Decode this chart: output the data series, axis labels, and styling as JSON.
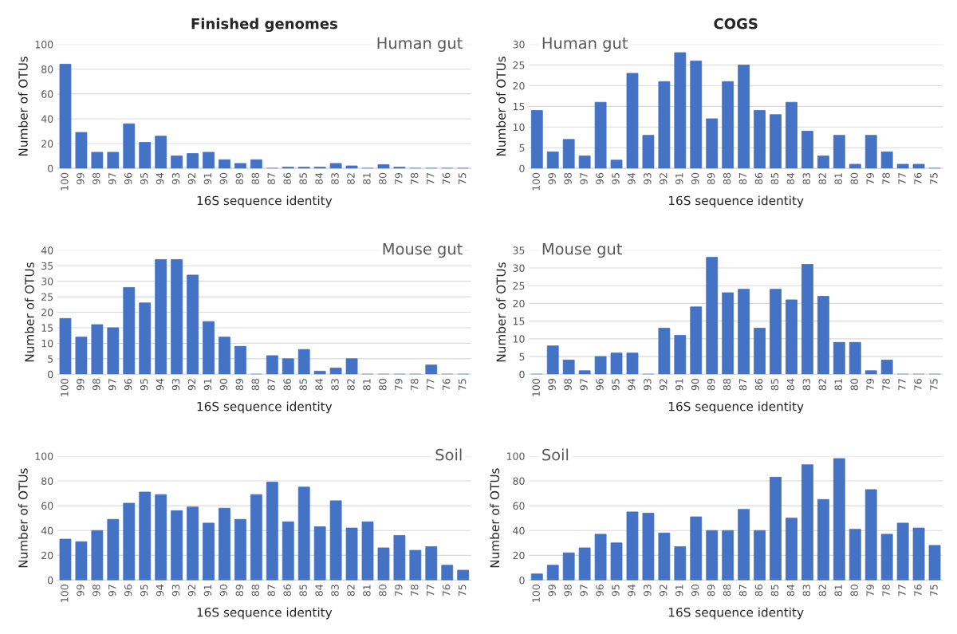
{
  "chart_data": [
    {
      "type": "bar",
      "title": "Finished genomes",
      "subtitle": "Human gut",
      "xlabel": "16S sequence identity",
      "ylabel": "Number of OTUs",
      "categories": [
        "100",
        "99",
        "98",
        "97",
        "96",
        "95",
        "94",
        "93",
        "92",
        "91",
        "90",
        "89",
        "88",
        "87",
        "86",
        "85",
        "84",
        "83",
        "82",
        "81",
        "80",
        "79",
        "78",
        "77",
        "76",
        "75"
      ],
      "color": "#4472c4",
      "values": [
        84,
        29,
        13,
        13,
        36,
        21,
        26,
        10,
        12,
        13,
        7,
        4,
        7,
        0,
        1,
        1,
        1,
        4,
        2,
        0,
        3,
        1,
        0,
        0,
        0,
        0
      ],
      "ylim": [
        0,
        100
      ],
      "yticks": [
        0,
        20,
        40,
        60,
        80,
        100
      ],
      "grid": "y",
      "legend": false
    },
    {
      "type": "bar",
      "title": "COGS",
      "subtitle": "Human gut",
      "xlabel": "16S sequence identity",
      "ylabel": "Number of OTUs",
      "categories": [
        "100",
        "99",
        "98",
        "97",
        "96",
        "95",
        "94",
        "93",
        "92",
        "91",
        "90",
        "89",
        "88",
        "87",
        "86",
        "85",
        "84",
        "83",
        "82",
        "81",
        "80",
        "79",
        "78",
        "77",
        "76",
        "75"
      ],
      "color": "#4472c4",
      "values": [
        14,
        4,
        7,
        3,
        16,
        2,
        23,
        8,
        21,
        28,
        26,
        12,
        21,
        25,
        14,
        13,
        16,
        9,
        3,
        8,
        1,
        8,
        4,
        1,
        1,
        0
      ],
      "ylim": [
        0,
        30
      ],
      "yticks": [
        0,
        5,
        10,
        15,
        20,
        25,
        30
      ],
      "grid": "y",
      "legend": false
    },
    {
      "type": "bar",
      "subtitle": "Mouse gut",
      "xlabel": "16S sequence identity",
      "ylabel": "Number of OTUs",
      "categories": [
        "100",
        "99",
        "98",
        "97",
        "96",
        "95",
        "94",
        "93",
        "92",
        "91",
        "90",
        "89",
        "88",
        "87",
        "86",
        "85",
        "84",
        "83",
        "82",
        "81",
        "80",
        "79",
        "78",
        "77",
        "76",
        "75"
      ],
      "color": "#4472c4",
      "values": [
        18,
        12,
        16,
        15,
        28,
        23,
        37,
        37,
        32,
        17,
        12,
        9,
        0,
        6,
        5,
        8,
        1,
        2,
        5,
        0,
        0,
        0,
        0,
        3,
        0,
        0
      ],
      "ylim": [
        0,
        40
      ],
      "yticks": [
        0,
        5,
        10,
        15,
        20,
        25,
        30,
        35,
        40
      ],
      "grid": "y",
      "legend": false
    },
    {
      "type": "bar",
      "subtitle": "Mouse gut",
      "xlabel": "16S sequence identity",
      "ylabel": "Number of OTUs",
      "categories": [
        "100",
        "99",
        "98",
        "97",
        "96",
        "95",
        "94",
        "93",
        "92",
        "91",
        "90",
        "89",
        "88",
        "87",
        "86",
        "85",
        "84",
        "83",
        "82",
        "81",
        "80",
        "79",
        "78",
        "77",
        "76",
        "75"
      ],
      "color": "#4472c4",
      "values": [
        0,
        8,
        4,
        1,
        5,
        6,
        6,
        0,
        13,
        11,
        19,
        33,
        23,
        24,
        13,
        24,
        21,
        31,
        22,
        9,
        9,
        1,
        4,
        0,
        0,
        0
      ],
      "ylim": [
        0,
        35
      ],
      "yticks": [
        0,
        5,
        10,
        15,
        20,
        25,
        30,
        35
      ],
      "grid": "y",
      "legend": false
    },
    {
      "type": "bar",
      "subtitle": "Soil",
      "xlabel": "16S sequence identity",
      "ylabel": "Number of OTUs",
      "categories": [
        "100",
        "99",
        "98",
        "97",
        "96",
        "95",
        "94",
        "93",
        "92",
        "91",
        "90",
        "89",
        "88",
        "87",
        "86",
        "85",
        "84",
        "83",
        "82",
        "81",
        "80",
        "79",
        "78",
        "77",
        "76",
        "75"
      ],
      "color": "#4472c4",
      "values": [
        33,
        31,
        40,
        49,
        62,
        71,
        69,
        56,
        59,
        46,
        58,
        49,
        69,
        79,
        47,
        75,
        43,
        64,
        42,
        47,
        26,
        36,
        24,
        27,
        12,
        8
      ],
      "ylim": [
        0,
        100
      ],
      "yticks": [
        0,
        20,
        40,
        60,
        80,
        100
      ],
      "grid": "y",
      "legend": false
    },
    {
      "type": "bar",
      "subtitle": "Soil",
      "xlabel": "16S sequence identity",
      "ylabel": "Number of OTUs",
      "categories": [
        "100",
        "99",
        "98",
        "97",
        "96",
        "95",
        "94",
        "93",
        "92",
        "91",
        "90",
        "89",
        "88",
        "87",
        "86",
        "85",
        "84",
        "83",
        "82",
        "81",
        "80",
        "79",
        "78",
        "77",
        "76",
        "75"
      ],
      "color": "#4472c4",
      "values": [
        5,
        12,
        22,
        26,
        37,
        30,
        55,
        54,
        38,
        27,
        51,
        40,
        40,
        57,
        40,
        83,
        50,
        93,
        65,
        98,
        41,
        73,
        37,
        46,
        42,
        28
      ],
      "ylim": [
        0,
        100
      ],
      "yticks": [
        0,
        20,
        40,
        60,
        80,
        100
      ],
      "grid": "y",
      "legend": false
    }
  ]
}
